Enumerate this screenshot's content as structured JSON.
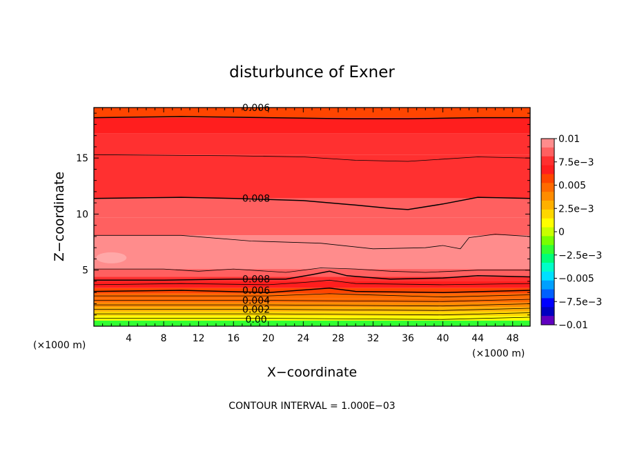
{
  "chart_data": {
    "type": "heatmap",
    "title": "disturbunce of Exner",
    "xlabel": "X−coordinate",
    "ylabel": "Z−coordinate",
    "x_unit_left": "(×1000 m)",
    "x_unit_right": "(×1000 m)",
    "footer": "CONTOUR INTERVAL = 1.000E−03",
    "xlim": [
      0,
      50
    ],
    "ylim": [
      0,
      19.5
    ],
    "x_ticks": [
      "4",
      "8",
      "12",
      "16",
      "20",
      "24",
      "28",
      "32",
      "36",
      "40",
      "44",
      "48"
    ],
    "y_ticks": [
      "5",
      "10",
      "15"
    ],
    "colorbar": {
      "min": -0.01,
      "max": 0.01,
      "tick_labels": [
        "0.01",
        "7.5e−3",
        "0.005",
        "2.5e−3",
        "0",
        "−2.5e−3",
        "−0.005",
        "−7.5e−3",
        "−0.01"
      ],
      "colors": [
        "#ff8c8c",
        "#ff6060",
        "#ff3030",
        "#ff1e1e",
        "#ff4500",
        "#ff6a00",
        "#ff8c00",
        "#ffb000",
        "#ffd700",
        "#ffff00",
        "#c8ff00",
        "#78ff00",
        "#32ff32",
        "#00ff78",
        "#00ffc8",
        "#00e0ff",
        "#00a0ff",
        "#0060ff",
        "#0000ff",
        "#0000c0",
        "#6000c0"
      ]
    },
    "contour_labels": [
      "0.006",
      "0.008",
      "0.008",
      "0.006",
      "0.004",
      "0.002",
      "0.00"
    ],
    "bands": [
      {
        "z_top": 19.5,
        "value": 0.0055
      },
      {
        "z_top": 18.6,
        "value": 0.0065
      },
      {
        "z_top": 17.2,
        "value": 0.0072
      },
      {
        "z_top": 15.3,
        "value": 0.0078
      },
      {
        "z_top": 11.4,
        "value": 0.0085
      },
      {
        "z_top": 9.7,
        "value": 0.0089
      },
      {
        "z_top": 8.1,
        "value": 0.0095
      },
      {
        "z_top": 5.1,
        "value": 0.0088
      },
      {
        "z_top": 4.4,
        "value": 0.0078
      },
      {
        "z_top": 4.0,
        "value": 0.0068
      },
      {
        "z_top": 3.4,
        "value": 0.006
      },
      {
        "z_top": 2.9,
        "value": 0.0052
      },
      {
        "z_top": 2.5,
        "value": 0.0044
      },
      {
        "z_top": 2.1,
        "value": 0.0036
      },
      {
        "z_top": 1.7,
        "value": 0.0028
      },
      {
        "z_top": 1.3,
        "value": 0.002
      },
      {
        "z_top": 0.9,
        "value": 0.0012
      },
      {
        "z_top": 0.5,
        "value": 0.0005
      }
    ],
    "contours": [
      {
        "level": 0.006,
        "points": [
          [
            0,
            18.6
          ],
          [
            10,
            18.7
          ],
          [
            20,
            18.6
          ],
          [
            30,
            18.5
          ],
          [
            36,
            18.5
          ],
          [
            44,
            18.6
          ],
          [
            50,
            18.6
          ]
        ]
      },
      {
        "level": 0.0075,
        "points": [
          [
            0,
            15.3
          ],
          [
            16,
            15.2
          ],
          [
            24,
            15.1
          ],
          [
            30,
            14.8
          ],
          [
            36,
            14.7
          ],
          [
            44,
            15.1
          ],
          [
            50,
            15.0
          ]
        ]
      },
      {
        "level": 0.008,
        "points": [
          [
            0,
            11.4
          ],
          [
            10,
            11.5
          ],
          [
            16,
            11.4
          ],
          [
            24,
            11.2
          ],
          [
            30,
            10.8
          ],
          [
            34,
            10.5
          ],
          [
            36,
            10.4
          ],
          [
            40,
            10.9
          ],
          [
            44,
            11.5
          ],
          [
            50,
            11.4
          ]
        ]
      },
      {
        "level": 0.009,
        "points": [
          [
            0,
            8.1
          ],
          [
            10,
            8.1
          ],
          [
            18,
            7.6
          ],
          [
            26,
            7.4
          ],
          [
            32,
            6.9
          ],
          [
            38,
            7.0
          ],
          [
            40,
            7.2
          ],
          [
            42,
            6.9
          ],
          [
            43,
            7.9
          ],
          [
            46,
            8.2
          ],
          [
            50,
            8.0
          ]
        ]
      },
      {
        "level": 0.0088,
        "points": [
          [
            0,
            5.1
          ],
          [
            8,
            5.1
          ],
          [
            12,
            4.9
          ],
          [
            16,
            5.1
          ],
          [
            22,
            4.8
          ],
          [
            26,
            5.2
          ],
          [
            30,
            5.1
          ],
          [
            34,
            4.9
          ],
          [
            38,
            4.8
          ],
          [
            44,
            5.0
          ],
          [
            50,
            5.0
          ]
        ]
      },
      {
        "level": 0.008,
        "points": [
          [
            0,
            4.1
          ],
          [
            8,
            4.1
          ],
          [
            16,
            4.2
          ],
          [
            22,
            4.2
          ],
          [
            25,
            4.6
          ],
          [
            27,
            4.9
          ],
          [
            29,
            4.5
          ],
          [
            34,
            4.2
          ],
          [
            40,
            4.3
          ],
          [
            44,
            4.5
          ],
          [
            50,
            4.4
          ]
        ]
      },
      {
        "level": 0.007,
        "points": [
          [
            0,
            3.7
          ],
          [
            10,
            3.8
          ],
          [
            20,
            3.7
          ],
          [
            24,
            3.9
          ],
          [
            27,
            4.1
          ],
          [
            30,
            3.8
          ],
          [
            40,
            3.7
          ],
          [
            50,
            3.8
          ]
        ]
      },
      {
        "level": 0.006,
        "points": [
          [
            0,
            3.1
          ],
          [
            10,
            3.2
          ],
          [
            20,
            3.0
          ],
          [
            27,
            3.4
          ],
          [
            30,
            3.1
          ],
          [
            40,
            3.0
          ],
          [
            50,
            3.2
          ]
        ]
      },
      {
        "level": 0.005,
        "points": [
          [
            0,
            2.7
          ],
          [
            20,
            2.7
          ],
          [
            27,
            2.9
          ],
          [
            40,
            2.6
          ],
          [
            50,
            2.8
          ]
        ]
      },
      {
        "level": 0.004,
        "points": [
          [
            0,
            2.3
          ],
          [
            20,
            2.3
          ],
          [
            40,
            2.2
          ],
          [
            50,
            2.4
          ]
        ]
      },
      {
        "level": 0.003,
        "points": [
          [
            0,
            1.9
          ],
          [
            20,
            1.9
          ],
          [
            40,
            1.8
          ],
          [
            50,
            2.0
          ]
        ]
      },
      {
        "level": 0.002,
        "points": [
          [
            0,
            1.5
          ],
          [
            20,
            1.5
          ],
          [
            40,
            1.4
          ],
          [
            50,
            1.6
          ]
        ]
      },
      {
        "level": 0.001,
        "points": [
          [
            0,
            1.1
          ],
          [
            20,
            1.1
          ],
          [
            40,
            1.0
          ],
          [
            50,
            1.2
          ]
        ]
      },
      {
        "level": 0.0005,
        "points": [
          [
            0,
            0.7
          ],
          [
            20,
            0.7
          ],
          [
            40,
            0.6
          ],
          [
            50,
            0.8
          ]
        ]
      }
    ]
  }
}
